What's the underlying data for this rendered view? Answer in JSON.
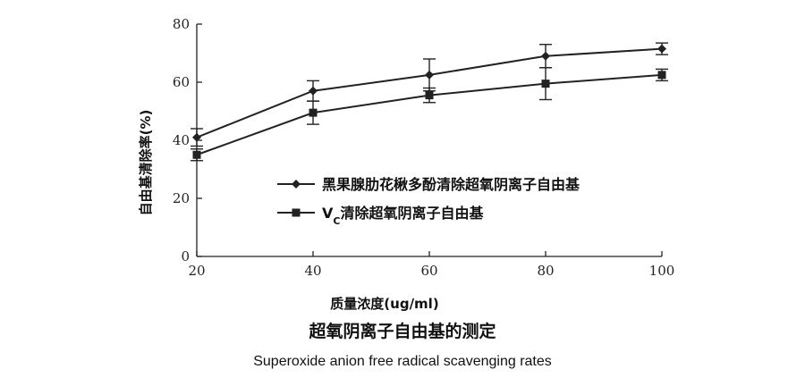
{
  "chart_data": {
    "type": "line",
    "xlabel": "质量浓度(ug/ml)",
    "ylabel": "自由基清除率(%)",
    "xlim": [
      20,
      100
    ],
    "ylim": [
      0,
      80
    ],
    "xticks": [
      20,
      40,
      60,
      80,
      100
    ],
    "yticks": [
      0,
      20,
      40,
      60,
      80
    ],
    "grid": false,
    "legend_position": "center-right",
    "series": [
      {
        "name": "黑果腺肋花楸多酚清除超氧阴离子自由基",
        "marker": "diamond",
        "x": [
          20,
          40,
          60,
          80,
          100
        ],
        "y": [
          41,
          57,
          62.5,
          69,
          71.5
        ],
        "error": [
          3,
          3.5,
          5.5,
          4,
          2
        ]
      },
      {
        "name": "Vc清除超氧阴离子自由基",
        "name_main": "V",
        "name_sub": "C",
        "name_rest": "清除超氧阴离子自由基",
        "marker": "square",
        "x": [
          20,
          40,
          60,
          80,
          100
        ],
        "y": [
          35,
          49.5,
          55.5,
          59.5,
          62.5
        ],
        "error": [
          2,
          4,
          2.5,
          5.5,
          2
        ]
      }
    ]
  },
  "captions": {
    "title_zh": "超氧阴离子自由基的测定",
    "title_en": "Superoxide   anion   free radical   scavenging rates"
  }
}
